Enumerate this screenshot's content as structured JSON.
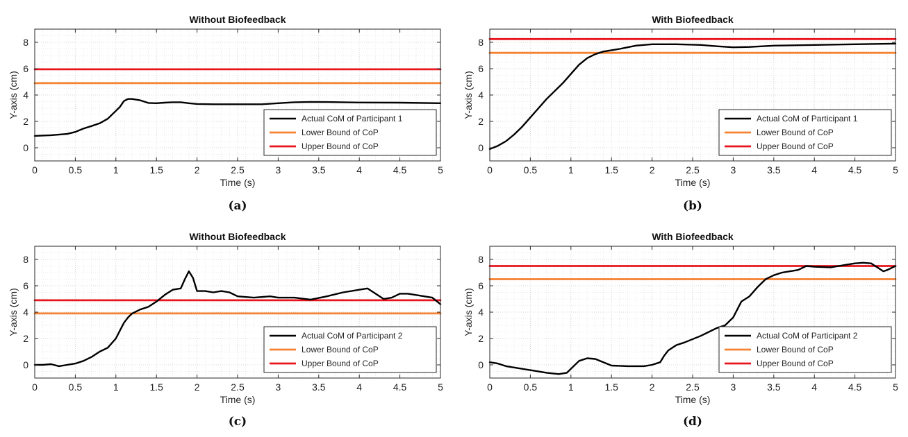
{
  "chart_data": [
    {
      "type": "line",
      "panel_label": "(a)",
      "title": "Without Biofeedback",
      "xlabel": "Time (s)",
      "ylabel": "Y-axis (cm)",
      "xlim": [
        0,
        5
      ],
      "ylim": [
        -1,
        9
      ],
      "xticks": [
        0,
        0.5,
        1,
        1.5,
        2,
        2.5,
        3,
        3.5,
        4,
        4.5,
        5
      ],
      "xtick_labels": [
        "0",
        "0.5",
        "1",
        "1.5",
        "2",
        "2.5",
        "3",
        "3.5",
        "4",
        "4.5",
        "5"
      ],
      "yticks": [
        0,
        2,
        4,
        6,
        8
      ],
      "ytick_labels": [
        "0",
        "2",
        "4",
        "6",
        "8"
      ],
      "grid": true,
      "legend_position": "bottom-right",
      "series": [
        {
          "name": "Actual CoM of Participant 1",
          "color": "#000000",
          "x": [
            0,
            0.2,
            0.4,
            0.5,
            0.6,
            0.7,
            0.8,
            0.9,
            1.0,
            1.05,
            1.1,
            1.15,
            1.2,
            1.3,
            1.4,
            1.5,
            1.6,
            1.7,
            1.8,
            1.9,
            2.0,
            2.2,
            2.5,
            2.8,
            3.0,
            3.2,
            3.4,
            3.6,
            4.0,
            4.5,
            5.0
          ],
          "y": [
            0.9,
            0.95,
            1.05,
            1.2,
            1.45,
            1.65,
            1.85,
            2.2,
            2.8,
            3.1,
            3.55,
            3.7,
            3.7,
            3.6,
            3.4,
            3.38,
            3.42,
            3.45,
            3.45,
            3.38,
            3.32,
            3.3,
            3.3,
            3.3,
            3.38,
            3.45,
            3.48,
            3.47,
            3.43,
            3.42,
            3.38
          ]
        },
        {
          "name": "Lower Bound of CoP",
          "color": "#f58132",
          "x": [
            0,
            5
          ],
          "y": [
            4.9,
            4.9
          ]
        },
        {
          "name": "Upper Bound of CoP",
          "color": "#e8141e",
          "x": [
            0,
            5
          ],
          "y": [
            5.95,
            5.95
          ]
        }
      ]
    },
    {
      "type": "line",
      "panel_label": "(b)",
      "title": "With Biofeedback",
      "xlabel": "Time (s)",
      "ylabel": "Y-axis (cm)",
      "xlim": [
        0,
        5
      ],
      "ylim": [
        -1,
        9
      ],
      "xticks": [
        0,
        0.5,
        1,
        1.5,
        2,
        2.5,
        3,
        3.5,
        4,
        4.5,
        5
      ],
      "xtick_labels": [
        "0",
        "0.5",
        "1",
        "1.5",
        "2",
        "2.5",
        "3",
        "3.5",
        "4",
        "4.5",
        "5"
      ],
      "yticks": [
        0,
        2,
        4,
        6,
        8
      ],
      "ytick_labels": [
        "0",
        "2",
        "4",
        "6",
        "8"
      ],
      "grid": true,
      "legend_position": "bottom-right",
      "series": [
        {
          "name": "Actual CoM of Participant 1",
          "color": "#000000",
          "x": [
            0,
            0.1,
            0.2,
            0.3,
            0.4,
            0.5,
            0.6,
            0.7,
            0.8,
            0.9,
            1.0,
            1.1,
            1.2,
            1.3,
            1.4,
            1.5,
            1.6,
            1.8,
            2.0,
            2.3,
            2.6,
            2.8,
            3.0,
            3.2,
            3.5,
            4.0,
            4.5,
            5.0
          ],
          "y": [
            -0.1,
            0.15,
            0.5,
            1.0,
            1.6,
            2.3,
            3.0,
            3.7,
            4.3,
            4.9,
            5.6,
            6.3,
            6.8,
            7.1,
            7.3,
            7.4,
            7.5,
            7.75,
            7.85,
            7.85,
            7.8,
            7.7,
            7.62,
            7.65,
            7.75,
            7.8,
            7.85,
            7.9
          ]
        },
        {
          "name": "Lower Bound of CoP",
          "color": "#f58132",
          "x": [
            0,
            5
          ],
          "y": [
            7.2,
            7.2
          ]
        },
        {
          "name": "Upper Bound of CoP",
          "color": "#e8141e",
          "x": [
            0,
            5
          ],
          "y": [
            8.25,
            8.25
          ]
        }
      ]
    },
    {
      "type": "line",
      "panel_label": "(c)",
      "title": "Without Biofeedback",
      "xlabel": "Time (s)",
      "ylabel": "Y-axis (cm)",
      "xlim": [
        0,
        5
      ],
      "ylim": [
        -1,
        9
      ],
      "xticks": [
        0,
        0.5,
        1,
        1.5,
        2,
        2.5,
        3,
        3.5,
        4,
        4.5,
        5
      ],
      "xtick_labels": [
        "0",
        "0.5",
        "1",
        "1.5",
        "2",
        "2.5",
        "3",
        "3.5",
        "4",
        "4.5",
        "5"
      ],
      "yticks": [
        0,
        2,
        4,
        6,
        8
      ],
      "ytick_labels": [
        "0",
        "2",
        "4",
        "6",
        "8"
      ],
      "grid": true,
      "legend_position": "bottom-right",
      "series": [
        {
          "name": "Actual CoM of Participant 2",
          "color": "#000000",
          "x": [
            0,
            0.1,
            0.2,
            0.3,
            0.4,
            0.5,
            0.6,
            0.7,
            0.8,
            0.9,
            1.0,
            1.05,
            1.1,
            1.15,
            1.2,
            1.3,
            1.4,
            1.5,
            1.6,
            1.7,
            1.8,
            1.85,
            1.9,
            1.95,
            2.0,
            2.1,
            2.2,
            2.3,
            2.4,
            2.5,
            2.7,
            2.9,
            3.0,
            3.2,
            3.4,
            3.6,
            3.8,
            4.0,
            4.1,
            4.2,
            4.3,
            4.4,
            4.5,
            4.6,
            4.7,
            4.8,
            4.9,
            5.0
          ],
          "y": [
            0.0,
            0.0,
            0.05,
            -0.1,
            0.0,
            0.1,
            0.3,
            0.6,
            1.0,
            1.3,
            2.0,
            2.6,
            3.2,
            3.6,
            3.9,
            4.2,
            4.4,
            4.8,
            5.3,
            5.7,
            5.8,
            6.5,
            7.1,
            6.6,
            5.6,
            5.6,
            5.5,
            5.6,
            5.5,
            5.2,
            5.1,
            5.2,
            5.1,
            5.1,
            4.95,
            5.2,
            5.5,
            5.7,
            5.8,
            5.4,
            5.0,
            5.1,
            5.4,
            5.4,
            5.3,
            5.2,
            5.1,
            4.6
          ]
        },
        {
          "name": "Lower Bound of CoP",
          "color": "#f58132",
          "x": [
            0,
            5
          ],
          "y": [
            3.9,
            3.9
          ]
        },
        {
          "name": "Upper Bound of CoP",
          "color": "#e8141e",
          "x": [
            0,
            5
          ],
          "y": [
            4.9,
            4.9
          ]
        }
      ]
    },
    {
      "type": "line",
      "panel_label": "(d)",
      "title": "With Biofeedback",
      "xlabel": "Time (s)",
      "ylabel": "Y-axis (cm)",
      "xlim": [
        0,
        5
      ],
      "ylim": [
        -1,
        9
      ],
      "xticks": [
        0,
        0.5,
        1,
        1.5,
        2,
        2.5,
        3,
        3.5,
        4,
        4.5,
        5
      ],
      "xtick_labels": [
        "0",
        "0.5",
        "1",
        "1.5",
        "2",
        "2.5",
        "3",
        "3.5",
        "4",
        "4.5",
        "5"
      ],
      "yticks": [
        0,
        2,
        4,
        6,
        8
      ],
      "ytick_labels": [
        "0",
        "2",
        "4",
        "6",
        "8"
      ],
      "grid": true,
      "legend_position": "bottom-right",
      "series": [
        {
          "name": "Actual CoM of Participant 2",
          "color": "#000000",
          "x": [
            0,
            0.1,
            0.2,
            0.3,
            0.5,
            0.7,
            0.85,
            0.95,
            1.0,
            1.1,
            1.2,
            1.3,
            1.4,
            1.5,
            1.7,
            1.9,
            2.0,
            2.1,
            2.15,
            2.2,
            2.3,
            2.4,
            2.6,
            2.8,
            2.9,
            3.0,
            3.1,
            3.2,
            3.3,
            3.4,
            3.5,
            3.6,
            3.7,
            3.8,
            3.9,
            4.0,
            4.2,
            4.4,
            4.5,
            4.6,
            4.7,
            4.8,
            4.85,
            4.9,
            5.0
          ],
          "y": [
            0.2,
            0.1,
            -0.1,
            -0.2,
            -0.4,
            -0.6,
            -0.7,
            -0.6,
            -0.3,
            0.3,
            0.5,
            0.45,
            0.2,
            -0.05,
            -0.1,
            -0.1,
            0.0,
            0.2,
            0.7,
            1.1,
            1.5,
            1.7,
            2.2,
            2.8,
            3.0,
            3.6,
            4.8,
            5.2,
            5.9,
            6.5,
            6.8,
            7.0,
            7.1,
            7.2,
            7.5,
            7.45,
            7.4,
            7.6,
            7.7,
            7.75,
            7.7,
            7.3,
            7.1,
            7.2,
            7.5
          ]
        },
        {
          "name": "Lower Bound of CoP",
          "color": "#f58132",
          "x": [
            0,
            5
          ],
          "y": [
            6.5,
            6.5
          ]
        },
        {
          "name": "Upper Bound of CoP",
          "color": "#e8141e",
          "x": [
            0,
            5
          ],
          "y": [
            7.5,
            7.5
          ]
        }
      ]
    }
  ]
}
